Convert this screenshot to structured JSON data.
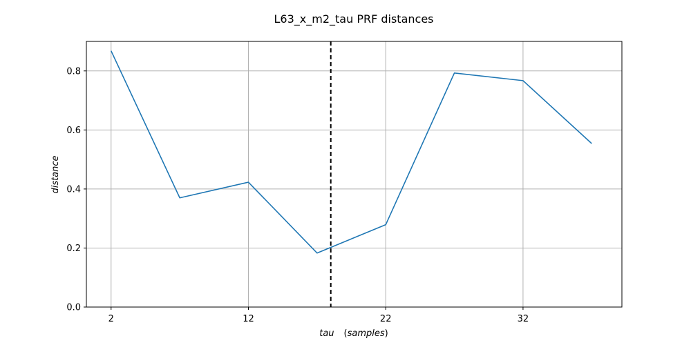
{
  "chart_data": {
    "type": "line",
    "title": "L63_x_m2_tau PRF distances",
    "xlabel_main": "tau",
    "xlabel_paren_open": "(",
    "xlabel_unit": "samples",
    "xlabel_paren_close": ")",
    "ylabel": "distance",
    "xlim": [
      0.2,
      39.2
    ],
    "ylim": [
      0.0,
      0.9
    ],
    "xticks": [
      2,
      12,
      22,
      32
    ],
    "yticks": [
      0.0,
      0.2,
      0.4,
      0.6,
      0.8
    ],
    "grid": true,
    "vline": {
      "x": 18,
      "style": "dashed",
      "color": "#000000"
    },
    "series": [
      {
        "color": "#1f77b4",
        "x": [
          2,
          7,
          12,
          17,
          22,
          27,
          32,
          37
        ],
        "y": [
          0.868,
          0.37,
          0.423,
          0.183,
          0.279,
          0.793,
          0.767,
          0.554
        ]
      }
    ]
  }
}
